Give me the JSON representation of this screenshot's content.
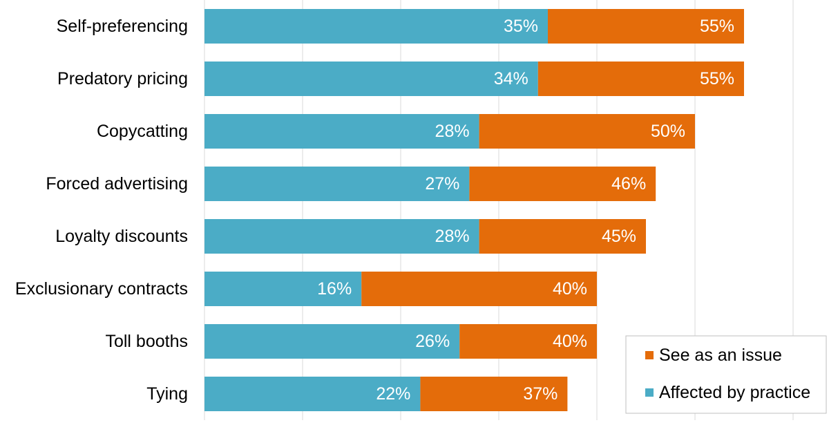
{
  "chart_data": {
    "type": "bar",
    "orientation": "horizontal",
    "stacked": true,
    "title": "",
    "xlabel": "",
    "ylabel": "",
    "xlim": [
      0,
      0.6
    ],
    "grid": true,
    "legend_position": "bottom-right",
    "categories": [
      "Self-preferencing",
      "Predatory pricing",
      "Copycatting",
      "Forced advertising",
      "Loyalty discounts",
      "Exclusionary contracts",
      "Toll booths",
      "Tying"
    ],
    "series": [
      {
        "name": "Affected by practice",
        "color": "#4BACC6",
        "values": [
          0.35,
          0.34,
          0.28,
          0.27,
          0.28,
          0.16,
          0.26,
          0.22
        ],
        "labels": [
          "35%",
          "34%",
          "28%",
          "27%",
          "28%",
          "16%",
          "26%",
          "22%"
        ]
      },
      {
        "name": "See as an issue",
        "color": "#E46C0A",
        "values": [
          0.2,
          0.21,
          0.22,
          0.19,
          0.17,
          0.24,
          0.14,
          0.15
        ],
        "labels": [
          "55%",
          "55%",
          "50%",
          "46%",
          "45%",
          "40%",
          "40%",
          "37%"
        ]
      }
    ],
    "legend": [
      {
        "name": "See as an issue",
        "color": "#E46C0A"
      },
      {
        "name": "Affected by practice",
        "color": "#4BACC6"
      }
    ]
  }
}
